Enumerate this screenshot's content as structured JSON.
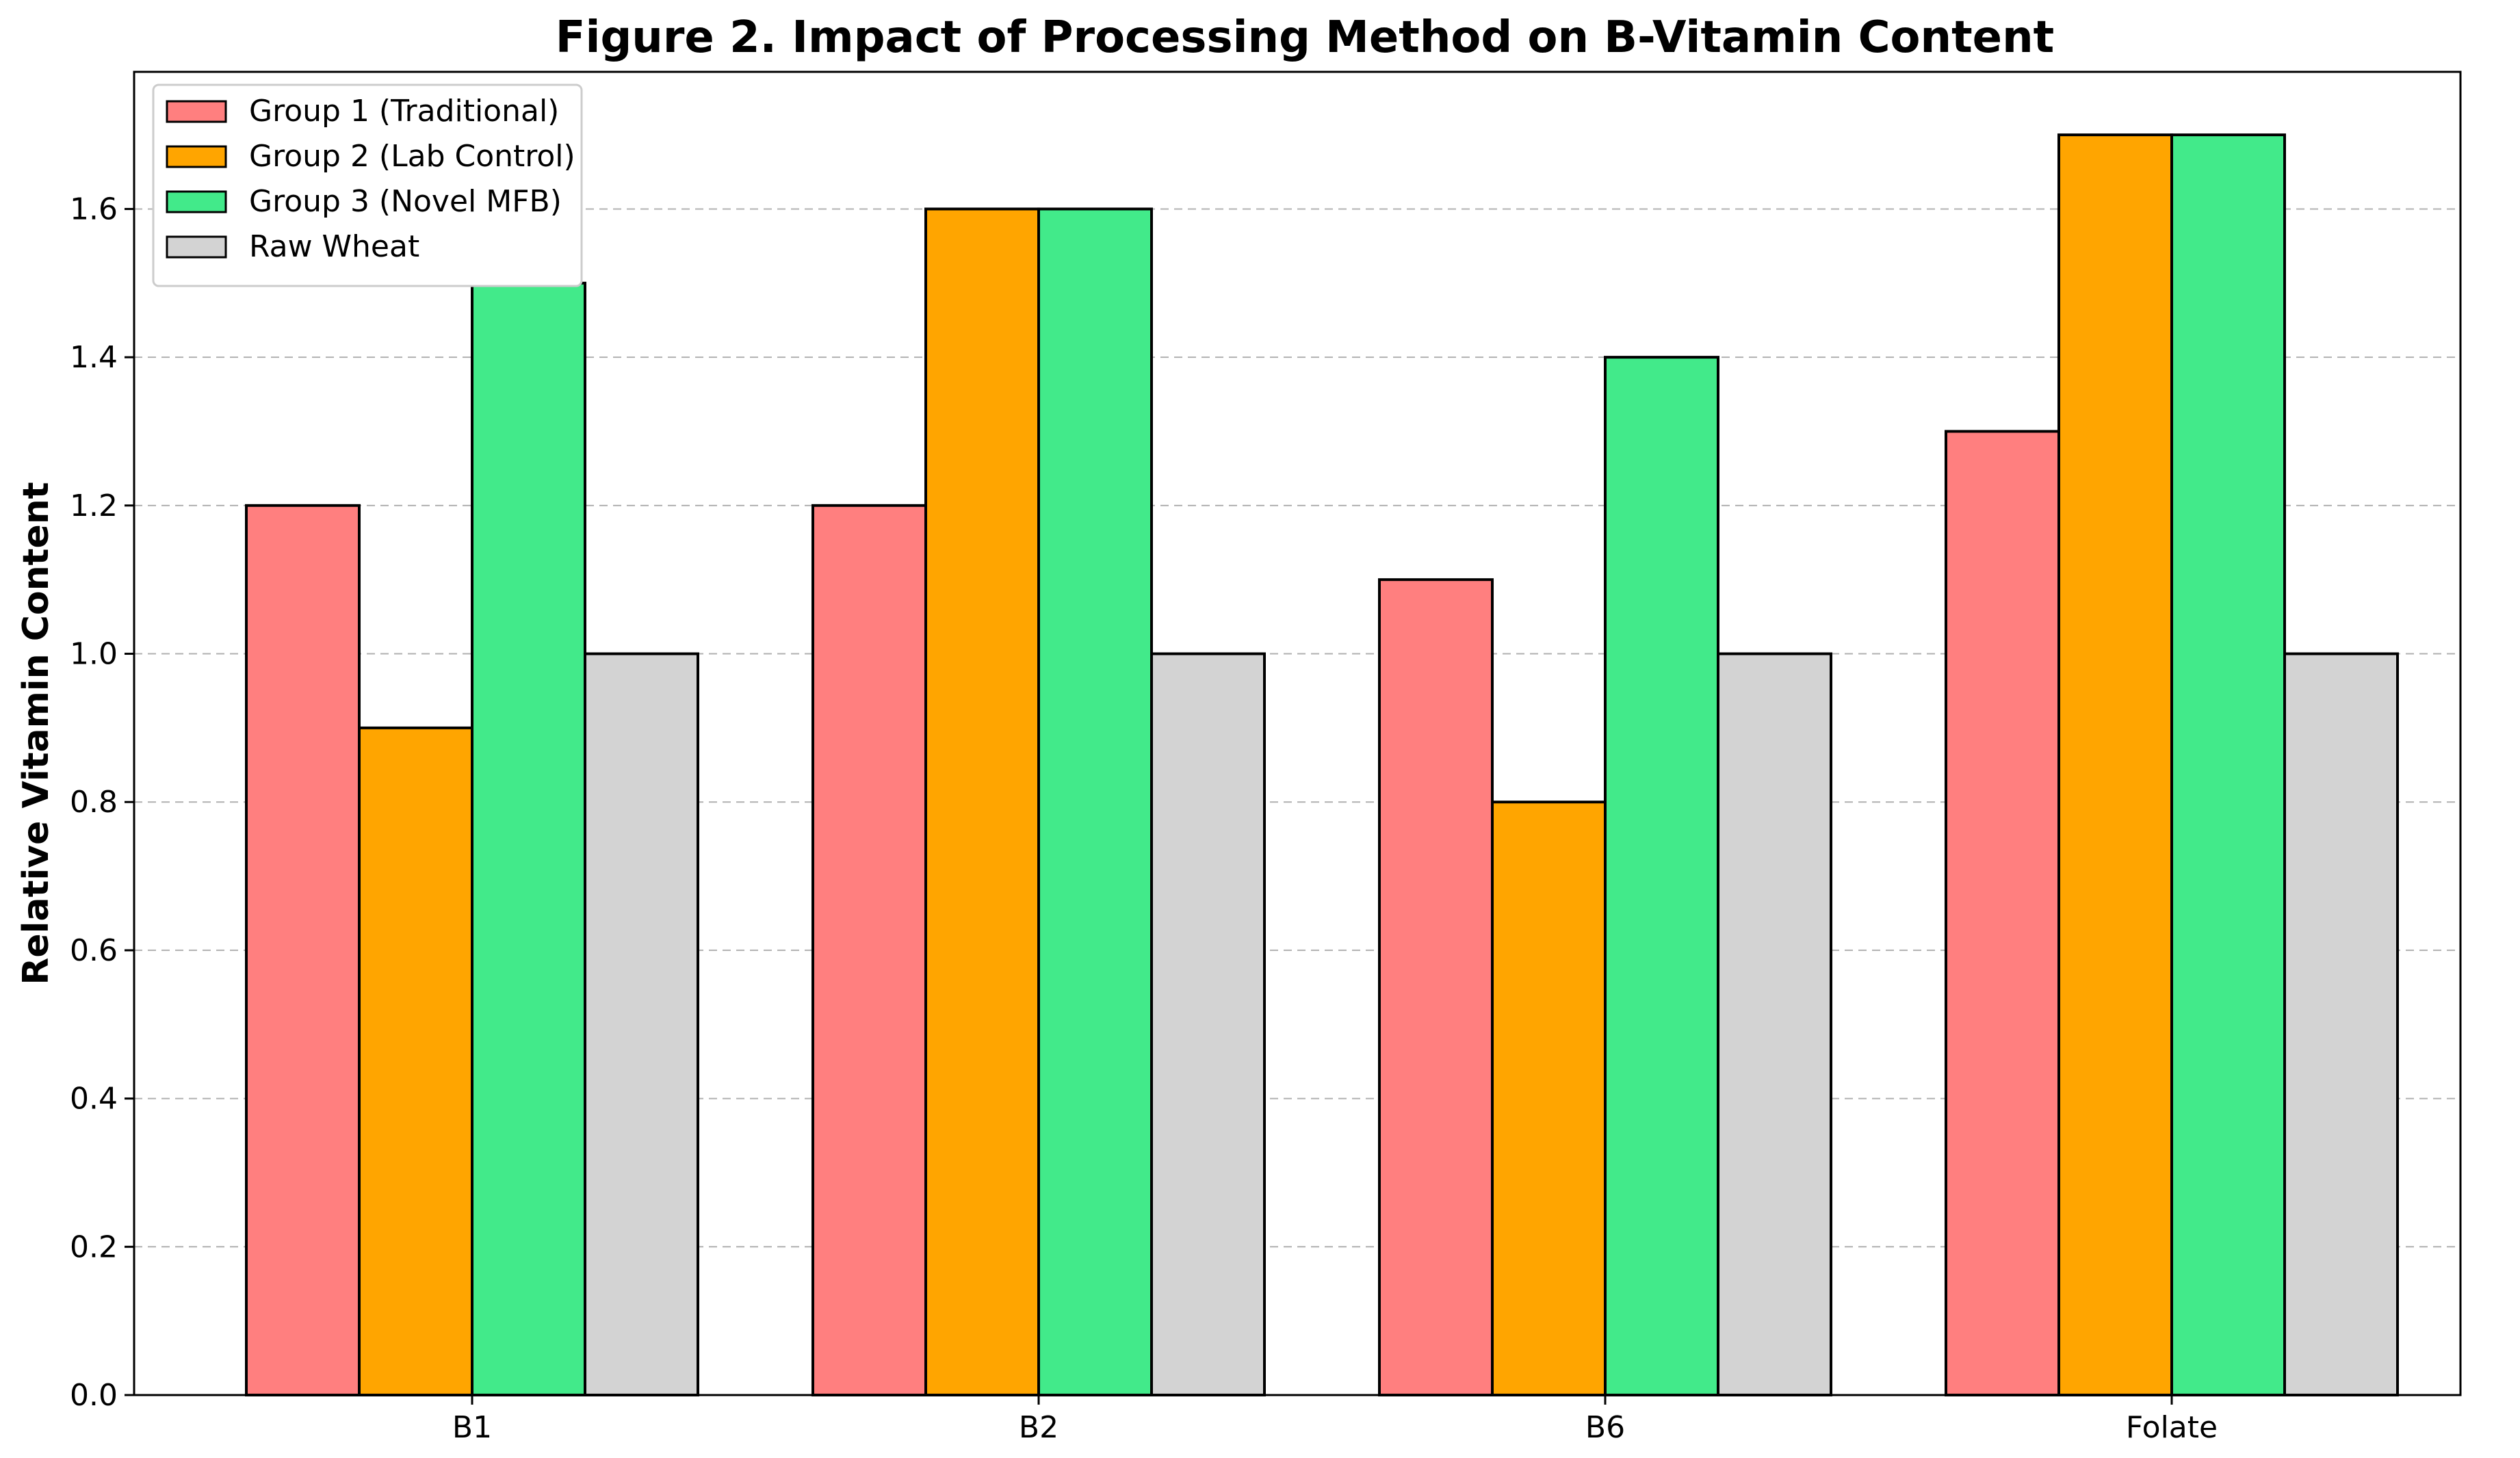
{
  "chart_data": {
    "type": "bar",
    "title": "Figure 2. Impact of Processing Method on B-Vitamin Content",
    "xlabel": "",
    "ylabel": "Relative Vitamin Content",
    "categories": [
      "B1",
      "B2",
      "B6",
      "Folate"
    ],
    "series": [
      {
        "name": "Group 1 (Traditional)",
        "color": "#ff7f7f",
        "values": [
          1.2,
          1.2,
          1.1,
          1.3
        ]
      },
      {
        "name": "Group 2 (Lab Control)",
        "color": "#ffa500",
        "values": [
          0.9,
          1.6,
          0.8,
          1.7
        ]
      },
      {
        "name": "Group 3 (Novel MFB)",
        "color": "#42ea8a",
        "values": [
          1.5,
          1.6,
          1.4,
          1.7
        ]
      },
      {
        "name": "Raw Wheat",
        "color": "#d3d3d3",
        "values": [
          1.0,
          1.0,
          1.0,
          1.0
        ]
      }
    ],
    "ylim": [
      0,
      1.785
    ],
    "yticks": [
      "0.0",
      "0.2",
      "0.4",
      "0.6",
      "0.8",
      "1.0",
      "1.2",
      "1.4",
      "1.6"
    ],
    "grid": "horizontal dashed",
    "legend_position": "top-left"
  }
}
